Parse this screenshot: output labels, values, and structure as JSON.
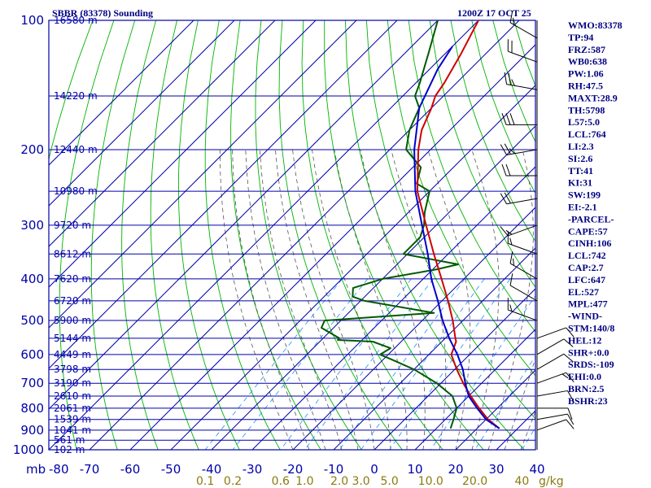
{
  "chart_data": {
    "type": "line",
    "title": "SBBR (83378) Sounding",
    "datetime": "1200Z 17 OCT 25",
    "p_unit": "mb",
    "w_unit": "g/kg",
    "pressure_ticks": [
      "100",
      "200",
      "300",
      "400",
      "500",
      "600",
      "700",
      "800",
      "900",
      "1000"
    ],
    "temp_ticks": [
      "-80",
      "-70",
      "-60",
      "-50",
      "-40",
      "-30",
      "-20",
      "-10",
      "0",
      "10",
      "20",
      "30",
      "40"
    ],
    "mixing_ratio_labels": [
      "0.1",
      "0.2",
      "0.6",
      "1.0",
      "2.0",
      "3.0",
      "5.0",
      "10.0",
      "20.0",
      "40"
    ],
    "height_labels": [
      {
        "p": 100,
        "text": "16580 m"
      },
      {
        "p": 150,
        "text": "14220 m"
      },
      {
        "p": 200,
        "text": "12440 m"
      },
      {
        "p": 250,
        "text": "10980 m"
      },
      {
        "p": 300,
        "text": "9720 m"
      },
      {
        "p": 350,
        "text": "8612 m"
      },
      {
        "p": 400,
        "text": "7620 m"
      },
      {
        "p": 450,
        "text": "6720 m"
      },
      {
        "p": 500,
        "text": "5900 m"
      },
      {
        "p": 550,
        "text": "5144 m"
      },
      {
        "p": 600,
        "text": "4449 m"
      },
      {
        "p": 650,
        "text": "3798 m"
      },
      {
        "p": 700,
        "text": "3190 m"
      },
      {
        "p": 750,
        "text": "2610 m"
      },
      {
        "p": 800,
        "text": "2061 m"
      },
      {
        "p": 850,
        "text": "1539 m"
      },
      {
        "p": 900,
        "text": "1041 m"
      },
      {
        "p": 950,
        "text": "561 m"
      },
      {
        "p": 1000,
        "text": "102 m"
      }
    ],
    "series": [
      {
        "name": "Temperature",
        "values": [
          [
            892,
            25.5
          ],
          [
            850,
            20.5
          ],
          [
            800,
            15.5
          ],
          [
            750,
            10.5
          ],
          [
            700,
            5.5
          ],
          [
            650,
            0.5
          ],
          [
            600,
            -4.5
          ],
          [
            560,
            -6.5
          ],
          [
            550,
            -7.5
          ],
          [
            500,
            -12.5
          ],
          [
            450,
            -18.5
          ],
          [
            400,
            -25.5
          ],
          [
            350,
            -33.5
          ],
          [
            300,
            -42.5
          ],
          [
            250,
            -53
          ],
          [
            200,
            -63
          ],
          [
            180,
            -67
          ],
          [
            160,
            -70
          ],
          [
            150,
            -72
          ],
          [
            140,
            -73
          ],
          [
            120,
            -76
          ],
          [
            100,
            -80
          ]
        ]
      },
      {
        "name": "Dewpoint",
        "values": [
          [
            892,
            13.5
          ],
          [
            850,
            12
          ],
          [
            800,
            10
          ],
          [
            750,
            6
          ],
          [
            700,
            -1
          ],
          [
            650,
            -10
          ],
          [
            620,
            -17
          ],
          [
            600,
            -22
          ],
          [
            580,
            -21
          ],
          [
            560,
            -27
          ],
          [
            555,
            -36
          ],
          [
            550,
            -36
          ],
          [
            520,
            -43
          ],
          [
            500,
            -44
          ],
          [
            480,
            -19
          ],
          [
            450,
            -39
          ],
          [
            440,
            -43
          ],
          [
            420,
            -45
          ],
          [
            400,
            -40
          ],
          [
            380,
            -29
          ],
          [
            370,
            -25
          ],
          [
            350,
            -41
          ],
          [
            320,
            -41
          ],
          [
            300,
            -43
          ],
          [
            280,
            -46
          ],
          [
            250,
            -50
          ],
          [
            240,
            -55
          ],
          [
            220,
            -58
          ],
          [
            200,
            -66
          ],
          [
            180,
            -70
          ],
          [
            160,
            -73
          ],
          [
            150,
            -77
          ],
          [
            140,
            -79
          ],
          [
            120,
            -84
          ],
          [
            100,
            -90
          ]
        ]
      },
      {
        "name": "Parcel",
        "values": [
          [
            892,
            25.5
          ],
          [
            850,
            20
          ],
          [
            800,
            15
          ],
          [
            750,
            10
          ],
          [
            700,
            6
          ],
          [
            650,
            2
          ],
          [
            600,
            -3
          ],
          [
            550,
            -9
          ],
          [
            500,
            -15
          ],
          [
            450,
            -21
          ],
          [
            400,
            -28
          ],
          [
            350,
            -35
          ],
          [
            300,
            -43.5
          ],
          [
            250,
            -53.5
          ],
          [
            200,
            -64
          ],
          [
            160,
            -73
          ],
          [
            130,
            -78
          ],
          [
            115,
            -80
          ]
        ]
      }
    ],
    "wind_barbs": [
      {
        "p": 110,
        "dir": 300,
        "spd": 15
      },
      {
        "p": 125,
        "dir": 290,
        "spd": 20
      },
      {
        "p": 145,
        "dir": 280,
        "spd": 25
      },
      {
        "p": 175,
        "dir": 270,
        "spd": 30
      },
      {
        "p": 200,
        "dir": 260,
        "spd": 25
      },
      {
        "p": 230,
        "dir": 270,
        "spd": 20
      },
      {
        "p": 260,
        "dir": 260,
        "spd": 20
      },
      {
        "p": 300,
        "dir": 250,
        "spd": 15
      },
      {
        "p": 350,
        "dir": 290,
        "spd": 15
      },
      {
        "p": 400,
        "dir": 300,
        "spd": 15
      },
      {
        "p": 450,
        "dir": 300,
        "spd": 10
      },
      {
        "p": 500,
        "dir": 290,
        "spd": 15
      },
      {
        "p": 550,
        "dir": 70,
        "spd": 10
      },
      {
        "p": 600,
        "dir": 60,
        "spd": 10
      },
      {
        "p": 650,
        "dir": 60,
        "spd": 10
      },
      {
        "p": 700,
        "dir": 70,
        "spd": 15
      },
      {
        "p": 750,
        "dir": 80,
        "spd": 10
      },
      {
        "p": 800,
        "dir": 90,
        "spd": 10
      },
      {
        "p": 850,
        "dir": 80,
        "spd": 10
      },
      {
        "p": 900,
        "dir": 70,
        "spd": 10
      }
    ],
    "indices": [
      "WMO:83378",
      "TP:94",
      "FRZ:587",
      "WB0:638",
      "PW:1.06",
      "RH:47.5",
      "MAXT:28.9",
      "TH:5798",
      "L57:5.0",
      "LCL:764",
      "LI:2.3",
      "SI:2.6",
      "TT:41",
      "KI:31",
      "SW:199",
      "EI:-2.1",
      "-PARCEL-",
      "CAPE:57",
      "CINH:106",
      "LCL:742",
      "CAP:2.7",
      "LFC:647",
      "EL:527",
      "MPL:477",
      "-WIND-",
      "STM:140/8",
      "HEL:12",
      "SHR+:0.0",
      "SRDS:-109",
      "EHI:0.0",
      "BRN:2.5",
      "BSHR:23"
    ],
    "colors": {
      "grid": "#0000aa",
      "dry_adiabat": "#00b400",
      "moist_adiabat": "#555555",
      "mixing_ratio": "#1e90ff",
      "temperature": "#d00000",
      "dewpoint": "#005a00",
      "parcel": "#0000c8",
      "wind": "#000000",
      "w_labels": "#8a7a10"
    }
  }
}
